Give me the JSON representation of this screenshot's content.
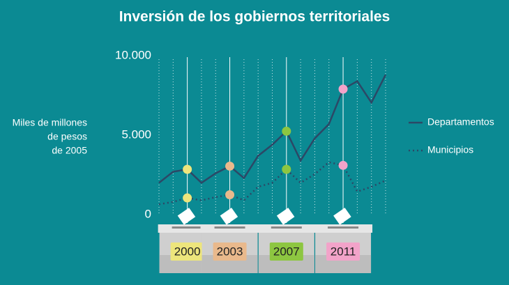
{
  "chart_data": {
    "type": "line",
    "title": "Inversión de los gobiernos territoriales",
    "ylabel": [
      "Miles de millones",
      "de pesos",
      "de 2005"
    ],
    "categories": [
      null,
      null,
      "2000",
      null,
      null,
      "2003",
      null,
      null,
      null,
      "2007",
      null,
      null,
      null,
      "2011",
      null,
      null,
      null
    ],
    "category_colors": [
      null,
      null,
      "#ede57c",
      null,
      null,
      "#e9b98c",
      null,
      null,
      null,
      "#8dc641",
      null,
      null,
      null,
      "#f2a3c9",
      null,
      null,
      null
    ],
    "series": [
      {
        "name": "Departamentos",
        "color": "#2c4866",
        "style": "solid",
        "values": [
          2000,
          2700,
          2850,
          2000,
          2600,
          3050,
          2300,
          3700,
          4400,
          5250,
          3400,
          4800,
          5700,
          7900,
          8400,
          7050,
          8800
        ]
      },
      {
        "name": "Municipios",
        "color": "#2c4866",
        "style": "dotted",
        "values": [
          650,
          800,
          1050,
          900,
          1100,
          1250,
          900,
          1750,
          2000,
          2850,
          2000,
          2550,
          3300,
          3100,
          1450,
          1750,
          2150
        ]
      }
    ],
    "ylim": [
      0,
      10000
    ],
    "yticks": [
      {
        "value": 0,
        "label": "0"
      },
      {
        "value": 5000,
        "label": "5.000"
      },
      {
        "value": 10000,
        "label": "10.000"
      }
    ],
    "legend": "right"
  }
}
